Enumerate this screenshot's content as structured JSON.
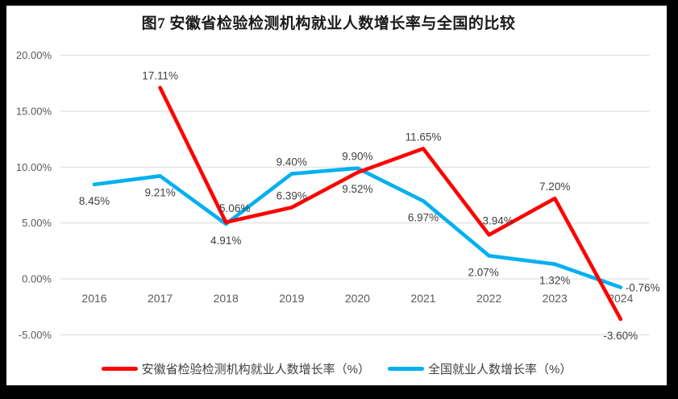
{
  "window": {
    "border_color": "#000000",
    "panel_color": "#ffffff"
  },
  "chart_data": {
    "type": "line",
    "title": "图7 安徽省检验检测机构就业人数增长率与全国的比较",
    "categories": [
      "2016",
      "2017",
      "2018",
      "2019",
      "2020",
      "2021",
      "2022",
      "2023",
      "2024"
    ],
    "series": [
      {
        "name": "安徽省检验检测机构就业人数增长率（%）",
        "color": "#FF0000",
        "values": [
          null,
          17.11,
          5.06,
          6.39,
          9.52,
          11.65,
          3.94,
          7.2,
          -3.6
        ],
        "labels": [
          "",
          "17.11%",
          "5.06%",
          "6.39%",
          "9.52%",
          "11.65%",
          "3.94%",
          "7.20%",
          "-3.60%"
        ],
        "label_placements": [
          null,
          "above",
          "above-right",
          "above",
          "below",
          "above",
          "above-right",
          "above",
          "below"
        ]
      },
      {
        "name": "全国就业人数增长率（%）",
        "color": "#00B0F0",
        "values": [
          8.45,
          9.21,
          4.91,
          9.4,
          9.9,
          6.97,
          2.07,
          1.32,
          -0.76
        ],
        "labels": [
          "8.45%",
          "9.21%",
          "4.91%",
          "9.40%",
          "9.90%",
          "6.97%",
          "2.07%",
          "1.32%",
          "-0.76%"
        ],
        "label_placements": [
          "below",
          "below",
          "below",
          "above",
          "above",
          "below",
          "below-left",
          "below",
          "right"
        ]
      }
    ],
    "ylim": [
      -5,
      20
    ],
    "yticks": [
      {
        "v": 20,
        "label": "20.00%"
      },
      {
        "v": 15,
        "label": "15.00%"
      },
      {
        "v": 10,
        "label": "10.00%"
      },
      {
        "v": 5,
        "label": "5.00%"
      },
      {
        "v": 0,
        "label": "0.00%"
      },
      {
        "v": -5,
        "label": "-5.00%"
      }
    ],
    "xlabel": "",
    "ylabel": "",
    "grid": true,
    "legend_position": "bottom",
    "styles": {
      "grid_color": "#D9D9D9",
      "axis_text_color": "#595959",
      "data_label_color": "#3f3f3f",
      "line_width": 4.6
    }
  }
}
